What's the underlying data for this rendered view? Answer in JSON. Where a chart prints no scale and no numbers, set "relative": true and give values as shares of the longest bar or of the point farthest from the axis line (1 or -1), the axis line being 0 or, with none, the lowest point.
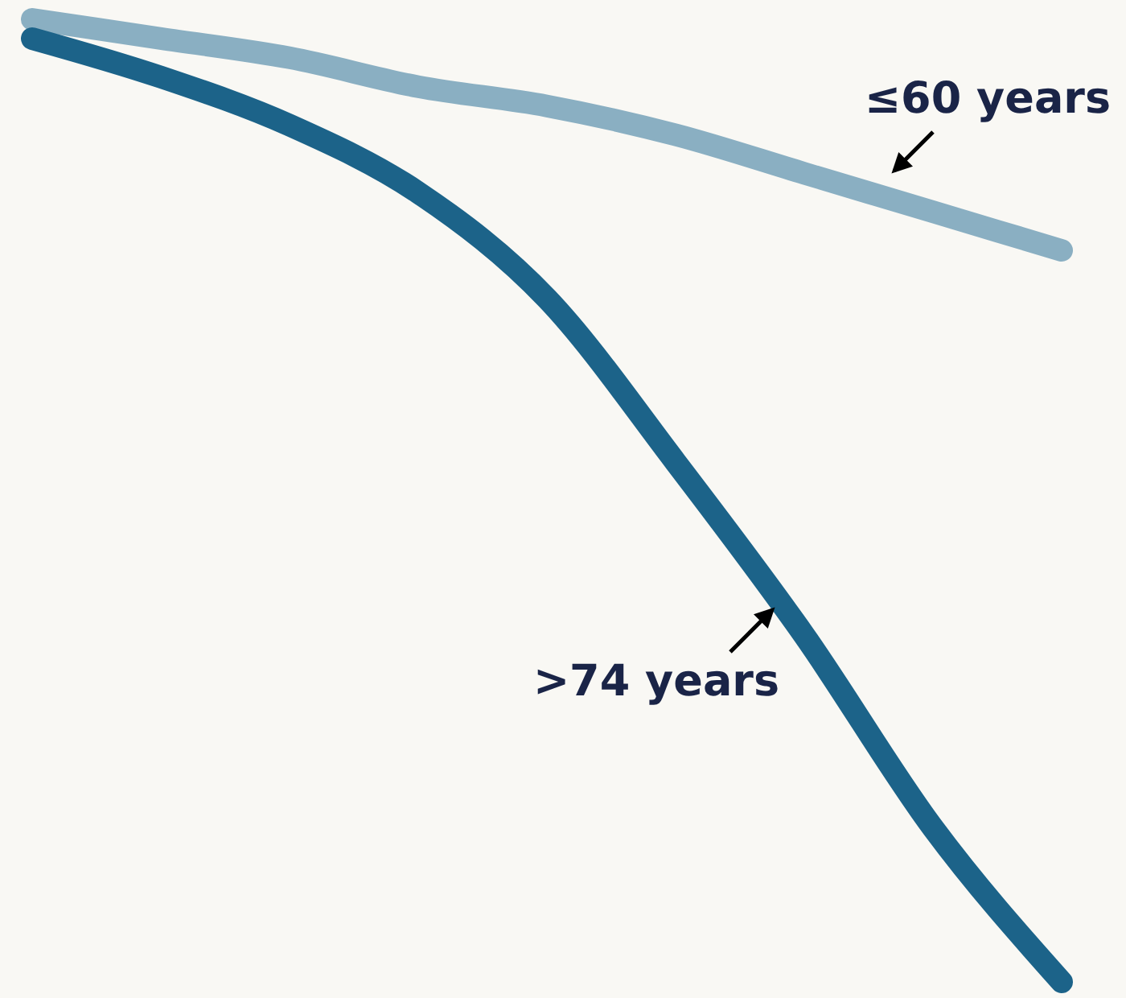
{
  "chart_data": {
    "type": "line",
    "relative": true,
    "categories": [
      null,
      null,
      null,
      null,
      null,
      null,
      null,
      null,
      null
    ],
    "line_style": "solid",
    "series": [
      {
        "name": "≤60 years",
        "color": "#8aafc2",
        "values": [
          1,
          0.98,
          0.96,
          0.93,
          0.91,
          0.88,
          0.84,
          0.8,
          0.76
        ]
      },
      {
        "name": ">74 years",
        "color": "#1c6389",
        "values": [
          0.98,
          0.94,
          0.89,
          0.82,
          0.71,
          0.54,
          0.36,
          0.16,
          0
        ]
      }
    ]
  }
}
